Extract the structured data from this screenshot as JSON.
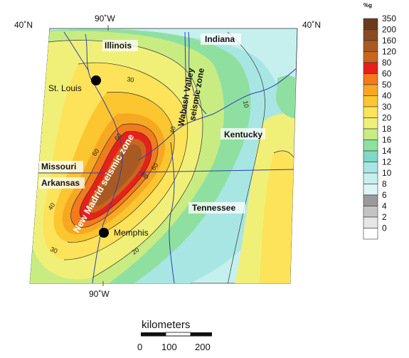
{
  "graticule": {
    "lon_top": "90˚W",
    "lon_bottom": "90˚W",
    "lat_left": "40˚N",
    "lat_right": "40˚N"
  },
  "states": [
    "Illinois",
    "Indiana",
    "Kentucky",
    "Missouri",
    "Arkansas",
    "Tennessee"
  ],
  "cities": [
    "St. Louis",
    "Memphis"
  ],
  "zones": {
    "wabash_line1": "Wabash Valley",
    "wabash_line2": "seismic zone",
    "new_madrid": "New Madrid seismic zone"
  },
  "contour_labels": [
    "30",
    "10",
    "40",
    "60",
    "60",
    "80",
    "60",
    "40",
    "30",
    "20"
  ],
  "legend": {
    "unit": "%g",
    "entries": [
      {
        "value": "350",
        "color": "#6b3a1f"
      },
      {
        "value": "200",
        "color": "#8b4a22"
      },
      {
        "value": "160",
        "color": "#a85a22"
      },
      {
        "value": "120",
        "color": "#c8661e"
      },
      {
        "value": "80",
        "color": "#e8201a"
      },
      {
        "value": "60",
        "color": "#f47a1c"
      },
      {
        "value": "50",
        "color": "#f7a823"
      },
      {
        "value": "40",
        "color": "#fbc630"
      },
      {
        "value": "30",
        "color": "#fde35a"
      },
      {
        "value": "20",
        "color": "#f0f078"
      },
      {
        "value": "18",
        "color": "#c8ec82"
      },
      {
        "value": "16",
        "color": "#8fe0a0"
      },
      {
        "value": "14",
        "color": "#7fd8c8"
      },
      {
        "value": "12",
        "color": "#a8e6e4"
      },
      {
        "value": "10",
        "color": "#c6f0ee"
      },
      {
        "value": "8",
        "color": "#dcf6f4"
      },
      {
        "value": "6",
        "color": "#9a9a9a"
      },
      {
        "value": "4",
        "color": "#c4c4c4"
      },
      {
        "value": "2",
        "color": "#e6e6e6"
      },
      {
        "value": "0",
        "color": "#ffffff"
      }
    ]
  },
  "scale": {
    "title": "kilometers",
    "ticks": [
      "0",
      "100",
      "200"
    ]
  }
}
